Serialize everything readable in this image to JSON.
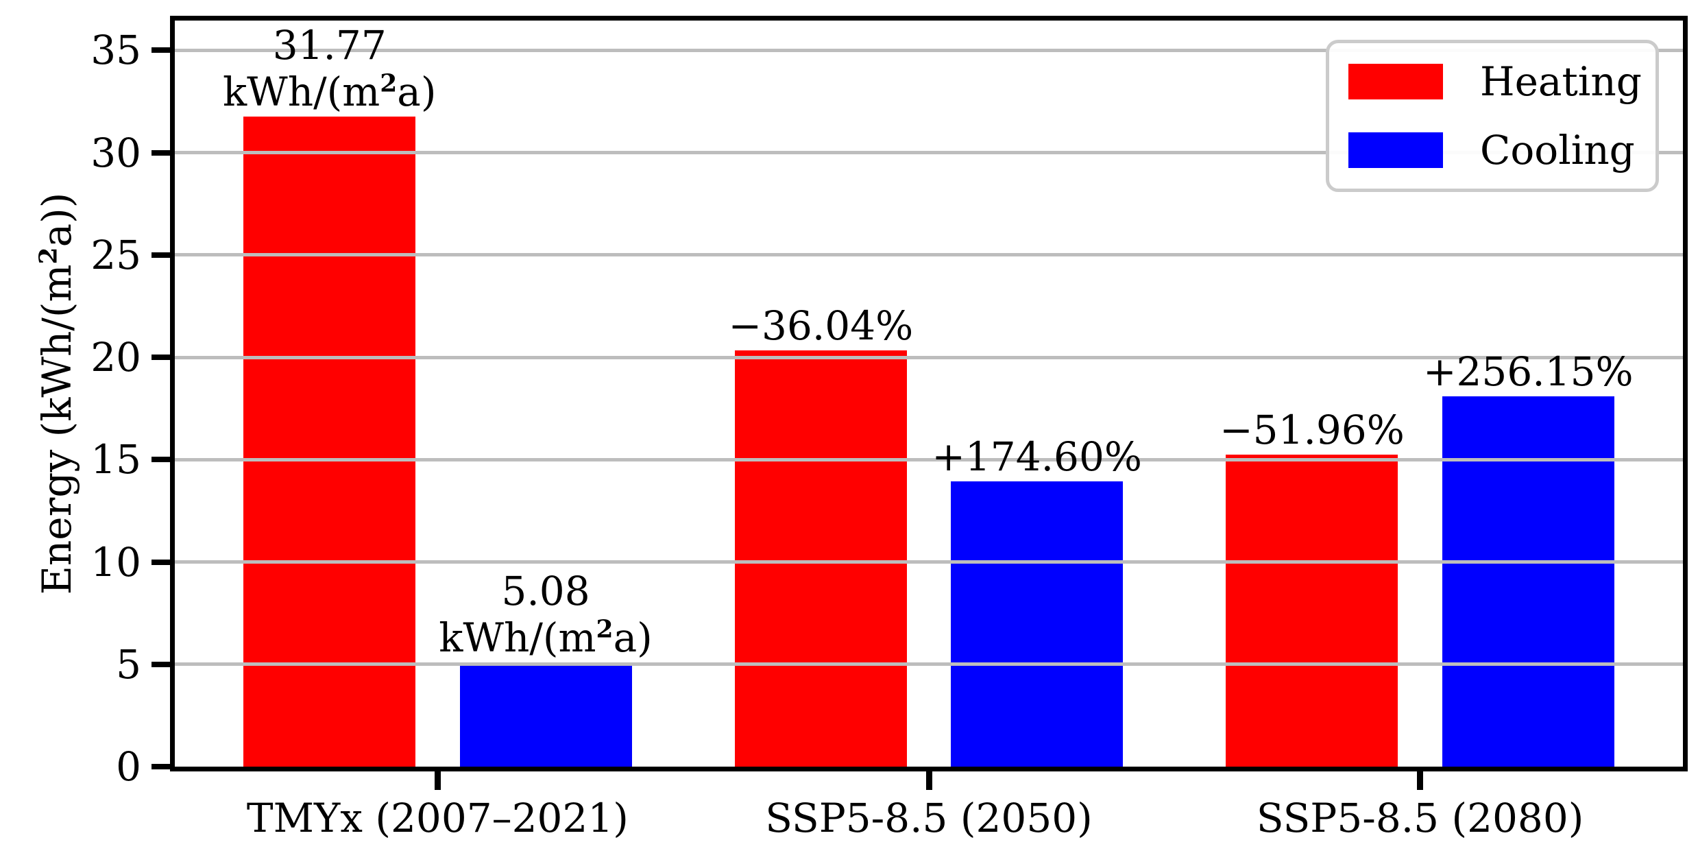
{
  "chart_data": {
    "type": "bar",
    "title": "",
    "xlabel": "",
    "ylabel": "Energy (kWh/(m²a))",
    "categories": [
      "TMYx (2007–2021)",
      "SSP5-8.5 (2050)",
      "SSP5-8.5 (2080)"
    ],
    "series": [
      {
        "name": "Heating",
        "color": "#ff0000",
        "values": [
          31.77,
          20.32,
          15.26
        ],
        "bar_labels": [
          "31.77\nkWh/(m²a)",
          "−36.04%",
          "−51.96%"
        ]
      },
      {
        "name": "Cooling",
        "color": "#0000ff",
        "values": [
          5.08,
          13.95,
          18.09
        ],
        "bar_labels": [
          "5.08\nkWh/(m²a)",
          "+174.60%",
          "+256.15%"
        ]
      }
    ],
    "y_ticks": [
      0,
      5,
      10,
      15,
      20,
      25,
      30,
      35
    ],
    "ylim": [
      0,
      36.45
    ],
    "grid": "horizontal",
    "grid_color": "#bdbdbd",
    "legend_position": "upper right",
    "legend_entries": [
      "Heating",
      "Cooling"
    ],
    "annotation_note_units": "kWh/(m²a)"
  }
}
